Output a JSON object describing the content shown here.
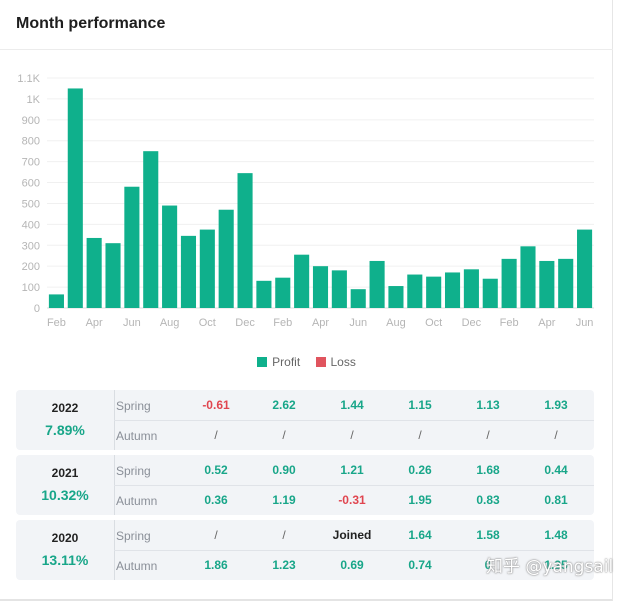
{
  "header": {
    "title": "Month performance"
  },
  "chart_data": {
    "type": "bar",
    "ylim": [
      0,
      1100
    ],
    "yticks": [
      "0",
      "100",
      "200",
      "300",
      "400",
      "500",
      "600",
      "700",
      "800",
      "900",
      "1K",
      "1.1K"
    ],
    "x_tick_labels": [
      "Feb",
      "Apr",
      "Jun",
      "Aug",
      "Oct",
      "Dec",
      "Feb",
      "Apr",
      "Jun",
      "Aug",
      "Oct",
      "Dec",
      "Feb",
      "Apr",
      "Jun"
    ],
    "series": [
      {
        "name": "Profit",
        "color": "#0fb08c",
        "values": [
          65,
          1050,
          335,
          310,
          580,
          750,
          490,
          345,
          375,
          470,
          645,
          130,
          145,
          255,
          200,
          180,
          90,
          225,
          105,
          160,
          150,
          170,
          185,
          140,
          235,
          295,
          225,
          235,
          375
        ]
      },
      {
        "name": "Loss",
        "color": "#e0545e",
        "values": []
      }
    ],
    "grid": true
  },
  "legend": {
    "profit": "Profit",
    "loss": "Loss"
  },
  "years": [
    {
      "year": "2022",
      "pct": "7.89%",
      "spring_label": "Spring",
      "autumn_label": "Autumn",
      "spring": [
        "-0.61",
        "2.62",
        "1.44",
        "1.15",
        "1.13",
        "1.93"
      ],
      "autumn": [
        "/",
        "/",
        "/",
        "/",
        "/",
        "/"
      ]
    },
    {
      "year": "2021",
      "pct": "10.32%",
      "spring_label": "Spring",
      "autumn_label": "Autumn",
      "spring": [
        "0.52",
        "0.90",
        "1.21",
        "0.26",
        "1.68",
        "0.44"
      ],
      "autumn": [
        "0.36",
        "1.19",
        "-0.31",
        "1.95",
        "0.83",
        "0.81"
      ]
    },
    {
      "year": "2020",
      "pct": "13.11%",
      "spring_label": "Spring",
      "autumn_label": "Autumn",
      "spring": [
        "/",
        "/",
        "Joined",
        "1.64",
        "1.58",
        "1.48"
      ],
      "autumn": [
        "1.86",
        "1.23",
        "0.69",
        "0.74",
        "0",
        "1.25"
      ]
    }
  ],
  "watermark": "知乎 @yangsail"
}
